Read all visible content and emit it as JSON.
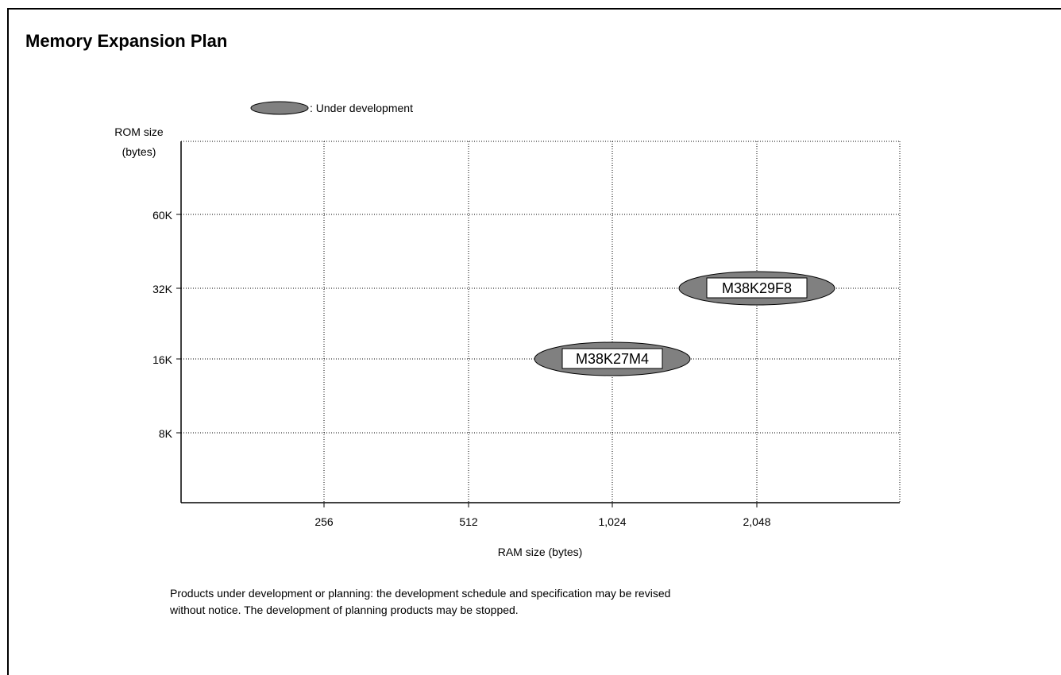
{
  "page": {
    "title": "Memory Expansion Plan",
    "notes": [
      "Products under development or planning: the development schedule and specification may be revised",
      "without notice. The development of planning products may be stopped."
    ]
  },
  "colors": {
    "product_fill": "#808080",
    "label_box": "#ffffff",
    "grid": "#000000"
  },
  "chart_data": {
    "type": "scatter",
    "title": "",
    "legend": {
      "symbol": "gray-ellipse",
      "label": ": Under development",
      "placement": "top-left"
    },
    "ylabel": [
      "ROM size",
      "(bytes)"
    ],
    "xlabel": "RAM size (bytes)",
    "x_ticks": [
      "256",
      "512",
      "1,024",
      "2,048"
    ],
    "y_ticks": [
      "8K",
      "16K",
      "32K",
      "60K"
    ],
    "x_scale": "log2",
    "y_scale": "log2",
    "grid": true,
    "points": [
      {
        "name": "M38K27M4",
        "x": "1,024",
        "y": "16K",
        "status": "Under development"
      },
      {
        "name": "M38K29F8",
        "x": "2,048",
        "y": "32K",
        "status": "Under development"
      }
    ]
  }
}
